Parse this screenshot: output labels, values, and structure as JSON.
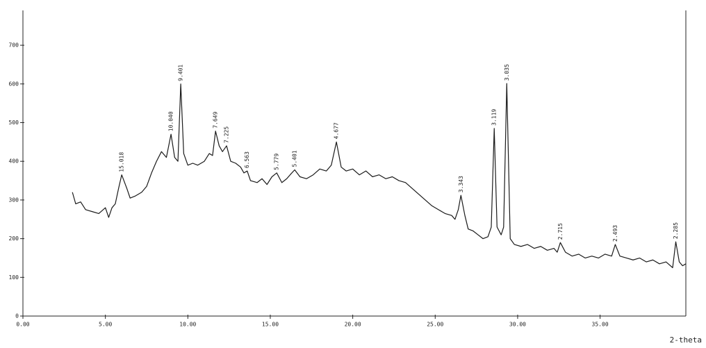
{
  "chart_data": {
    "type": "line",
    "x_label": "2-theta",
    "xlim": [
      0,
      40.2
    ],
    "ylim": [
      0,
      790
    ],
    "xticks": [
      {
        "value": 0,
        "label": "0.00"
      },
      {
        "value": 5,
        "label": "5.00"
      },
      {
        "value": 10,
        "label": "10.00"
      },
      {
        "value": 15,
        "label": "15.00"
      },
      {
        "value": 20,
        "label": "20.00"
      },
      {
        "value": 25,
        "label": "25.00"
      },
      {
        "value": 30,
        "label": "30.00"
      },
      {
        "value": 35,
        "label": "35.00"
      }
    ],
    "yticks": [
      0,
      100,
      200,
      300,
      400,
      500,
      600,
      700
    ],
    "grid": false,
    "color": "#1a1a1a",
    "x": [
      3.0,
      3.2,
      3.5,
      3.8,
      4.2,
      4.6,
      5.0,
      5.2,
      5.4,
      5.6,
      5.8,
      5.99,
      6.3,
      6.5,
      6.8,
      7.2,
      7.5,
      7.8,
      8.1,
      8.4,
      8.7,
      8.98,
      9.2,
      9.4,
      9.57,
      9.75,
      10.0,
      10.3,
      10.6,
      11.0,
      11.3,
      11.5,
      11.68,
      11.9,
      12.1,
      12.35,
      12.6,
      12.9,
      13.2,
      13.4,
      13.6,
      13.8,
      14.2,
      14.5,
      14.8,
      15.1,
      15.39,
      15.7,
      16.0,
      16.2,
      16.48,
      16.8,
      17.2,
      17.6,
      18.0,
      18.4,
      18.7,
      19.01,
      19.3,
      19.6,
      20.0,
      20.4,
      20.8,
      21.2,
      21.6,
      22.0,
      22.4,
      22.8,
      23.2,
      23.6,
      24.0,
      24.4,
      24.8,
      25.2,
      25.6,
      26.0,
      26.2,
      26.4,
      26.56,
      26.8,
      27.0,
      27.3,
      27.6,
      27.9,
      28.2,
      28.4,
      28.58,
      28.75,
      29.0,
      29.15,
      29.34,
      29.55,
      29.8,
      30.2,
      30.6,
      31.0,
      31.4,
      31.8,
      32.2,
      32.4,
      32.59,
      32.9,
      33.3,
      33.7,
      34.1,
      34.5,
      34.9,
      35.3,
      35.7,
      35.92,
      36.2,
      36.6,
      37.0,
      37.4,
      37.8,
      38.2,
      38.6,
      39.0,
      39.4,
      39.59,
      39.8,
      40.0,
      40.2
    ],
    "values": [
      320,
      290,
      295,
      275,
      270,
      265,
      280,
      255,
      280,
      290,
      330,
      365,
      330,
      305,
      310,
      320,
      335,
      370,
      400,
      425,
      410,
      470,
      410,
      400,
      600,
      420,
      390,
      395,
      390,
      400,
      420,
      415,
      478,
      440,
      425,
      440,
      400,
      395,
      385,
      370,
      375,
      350,
      345,
      355,
      340,
      360,
      370,
      345,
      355,
      365,
      378,
      360,
      355,
      365,
      380,
      375,
      390,
      450,
      385,
      375,
      380,
      365,
      375,
      360,
      365,
      355,
      360,
      350,
      345,
      330,
      315,
      300,
      285,
      275,
      265,
      260,
      250,
      275,
      312,
      260,
      225,
      220,
      210,
      200,
      205,
      230,
      485,
      230,
      210,
      230,
      601,
      200,
      185,
      180,
      185,
      175,
      180,
      170,
      175,
      165,
      190,
      165,
      155,
      160,
      150,
      155,
      150,
      160,
      155,
      185,
      155,
      150,
      145,
      150,
      140,
      145,
      135,
      140,
      125,
      192,
      140,
      130,
      135
    ],
    "annotations": [
      {
        "text": "15.018",
        "x": 5.99,
        "y": 365
      },
      {
        "text": "10.040",
        "x": 8.98,
        "y": 470
      },
      {
        "text": "9.401",
        "x": 9.57,
        "y": 600
      },
      {
        "text": "7.649",
        "x": 11.68,
        "y": 478
      },
      {
        "text": "7.225",
        "x": 12.35,
        "y": 440
      },
      {
        "text": "6.563",
        "x": 13.6,
        "y": 375
      },
      {
        "text": "5.779",
        "x": 15.39,
        "y": 370
      },
      {
        "text": "5.401",
        "x": 16.48,
        "y": 378
      },
      {
        "text": "4.677",
        "x": 19.01,
        "y": 450
      },
      {
        "text": "3.343",
        "x": 26.56,
        "y": 312
      },
      {
        "text": "3.119",
        "x": 28.58,
        "y": 485
      },
      {
        "text": "3.035",
        "x": 29.34,
        "y": 601
      },
      {
        "text": "2.715",
        "x": 32.59,
        "y": 190
      },
      {
        "text": "2.493",
        "x": 35.92,
        "y": 185
      },
      {
        "text": "2.285",
        "x": 39.59,
        "y": 192
      }
    ]
  }
}
